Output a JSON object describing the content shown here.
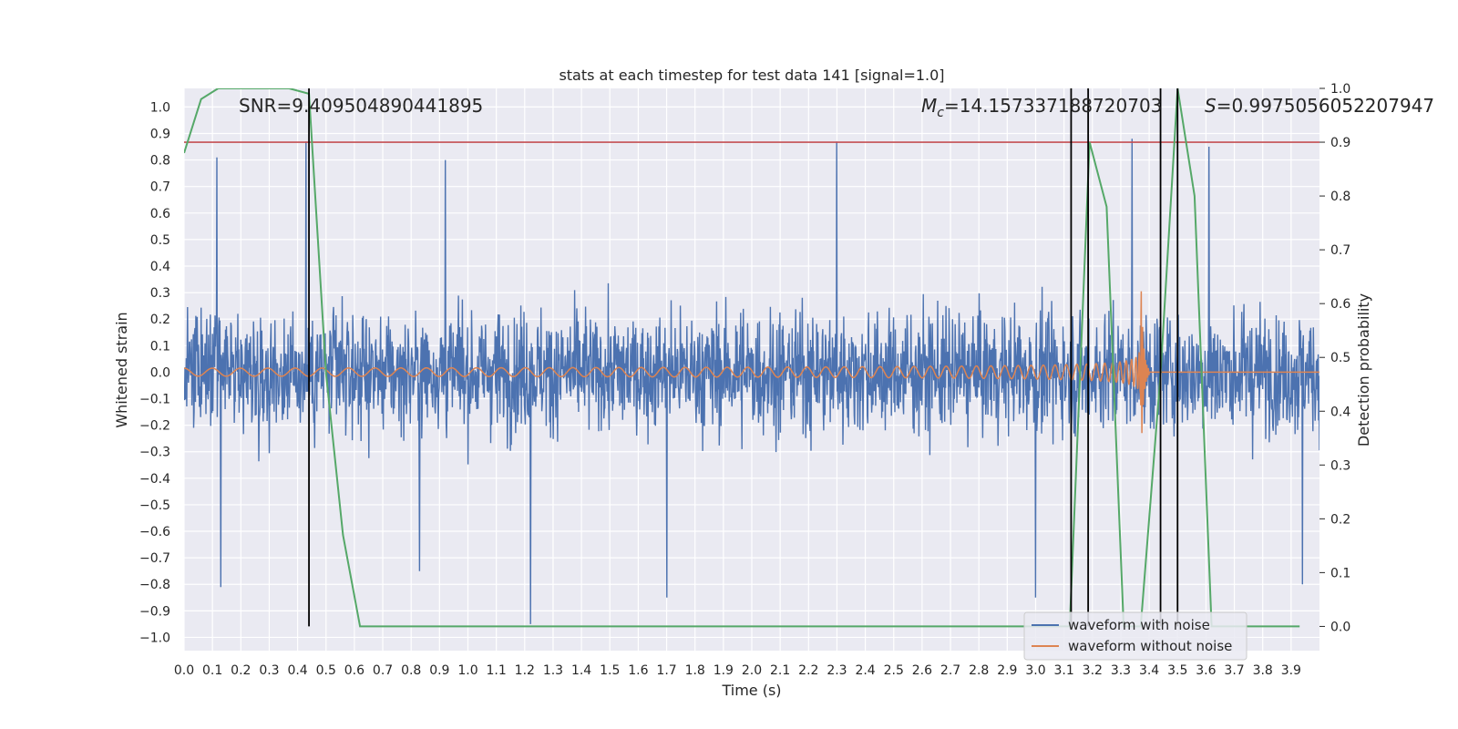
{
  "chart_data": {
    "type": "line",
    "title": "stats at each timestep for test data 141 [signal=1.0]",
    "xlabel": "Time (s)",
    "ylabel": "Whitened strain",
    "y2label": "Detection probability",
    "xlim": [
      0.0,
      4.0
    ],
    "ylim": [
      -1.05,
      1.07
    ],
    "y2lim": [
      -0.045,
      1.0
    ],
    "xticks": [
      "0.0",
      "0.1",
      "0.2",
      "0.3",
      "0.4",
      "0.5",
      "0.6",
      "0.7",
      "0.8",
      "0.9",
      "1.0",
      "1.1",
      "1.2",
      "1.3",
      "1.4",
      "1.5",
      "1.6",
      "1.7",
      "1.8",
      "1.9",
      "2.0",
      "2.1",
      "2.2",
      "2.3",
      "2.4",
      "2.5",
      "2.6",
      "2.7",
      "2.8",
      "2.9",
      "3.0",
      "3.1",
      "3.2",
      "3.3",
      "3.4",
      "3.5",
      "3.6",
      "3.7",
      "3.8",
      "3.9"
    ],
    "yticks": [
      "1.0",
      "0.9",
      "0.8",
      "0.7",
      "0.6",
      "0.5",
      "0.4",
      "0.3",
      "0.2",
      "0.1",
      "0.0",
      "−0.1",
      "−0.2",
      "−0.3",
      "−0.4",
      "−0.5",
      "−0.6",
      "−0.7",
      "−0.8",
      "−0.9",
      "−1.0"
    ],
    "y2ticks": [
      "1.0",
      "0.9",
      "0.8",
      "0.7",
      "0.6",
      "0.5",
      "0.4",
      "0.3",
      "0.2",
      "0.1",
      "0.0"
    ],
    "annotations": {
      "snr": "SNR=9.409504890441895",
      "mc_symbol": "M",
      "mc_sub": "c",
      "mc_value": "=14.157337188720703",
      "s_symbol": "S",
      "s_value": "=0.9975056052207947"
    },
    "threshold": {
      "value": 0.9,
      "color": "#c44e52"
    },
    "vertical_lines": [
      0.44,
      3.125,
      3.185,
      3.44,
      3.5
    ],
    "series": [
      {
        "name": "waveform with noise",
        "color": "#4c72b0",
        "description": "dense noisy whitened strain, amplitude roughly ±0.5 with spikes up to ±0.9",
        "amplitude": 0.45,
        "peaks": [
          {
            "x": 0.115,
            "y": 0.81
          },
          {
            "x": 0.43,
            "y": 0.87
          },
          {
            "x": 0.92,
            "y": 0.8
          },
          {
            "x": 2.3,
            "y": 0.87
          },
          {
            "x": 3.34,
            "y": 0.88
          },
          {
            "x": 3.61,
            "y": 0.85
          },
          {
            "x": 0.13,
            "y": -0.81
          },
          {
            "x": 0.83,
            "y": -0.75
          },
          {
            "x": 1.22,
            "y": -0.95
          },
          {
            "x": 1.7,
            "y": -0.85
          },
          {
            "x": 3.0,
            "y": -0.85
          },
          {
            "x": 3.94,
            "y": -0.8
          }
        ]
      },
      {
        "name": "waveform without noise",
        "color": "#dd8452",
        "description": "inspiral chirp growing in frequency and amplitude, merging near t=3.37 s then flat",
        "start_amplitude": 0.015,
        "peak_amplitude": 0.39,
        "merger_time": 3.37
      },
      {
        "name": "detection probability",
        "color": "#55a868",
        "axis": "right",
        "x": [
          0.0,
          0.06,
          0.12,
          0.18,
          0.25,
          0.31,
          0.37,
          0.44,
          0.5,
          0.56,
          0.62,
          0.68,
          0.75,
          0.81,
          0.87,
          0.93,
          1.0,
          1.06,
          1.12,
          1.18,
          1.25,
          1.31,
          1.37,
          1.43,
          1.5,
          1.56,
          1.62,
          1.68,
          1.75,
          1.81,
          1.87,
          1.93,
          2.0,
          2.06,
          2.12,
          2.18,
          2.25,
          2.31,
          2.37,
          2.43,
          2.5,
          2.56,
          2.62,
          2.68,
          2.75,
          2.81,
          2.87,
          2.93,
          3.0,
          3.06,
          3.12,
          3.19,
          3.25,
          3.31,
          3.37,
          3.44,
          3.5,
          3.56,
          3.62,
          3.68,
          3.75,
          3.81,
          3.87,
          3.93
        ],
        "y": [
          0.88,
          0.98,
          1.0,
          1.0,
          1.0,
          1.0,
          1.0,
          0.99,
          0.47,
          0.17,
          0.0,
          0.0,
          0.0,
          0.0,
          0.0,
          0.0,
          0.0,
          0.0,
          0.0,
          0.0,
          0.0,
          0.0,
          0.0,
          0.0,
          0.0,
          0.0,
          0.0,
          0.0,
          0.0,
          0.0,
          0.0,
          0.0,
          0.0,
          0.0,
          0.0,
          0.0,
          0.0,
          0.0,
          0.0,
          0.0,
          0.0,
          0.0,
          0.0,
          0.0,
          0.0,
          0.0,
          0.0,
          0.0,
          0.0,
          0.0,
          0.0,
          0.9,
          0.78,
          0.0,
          0.0,
          0.47,
          1.0,
          0.8,
          0.0,
          0.0,
          0.0,
          0.0,
          0.0,
          0.0
        ]
      }
    ],
    "legend": {
      "position": "lower-right",
      "entries": [
        {
          "label": "waveform with noise",
          "color": "#4c72b0"
        },
        {
          "label": "waveform without noise",
          "color": "#dd8452"
        }
      ]
    }
  }
}
